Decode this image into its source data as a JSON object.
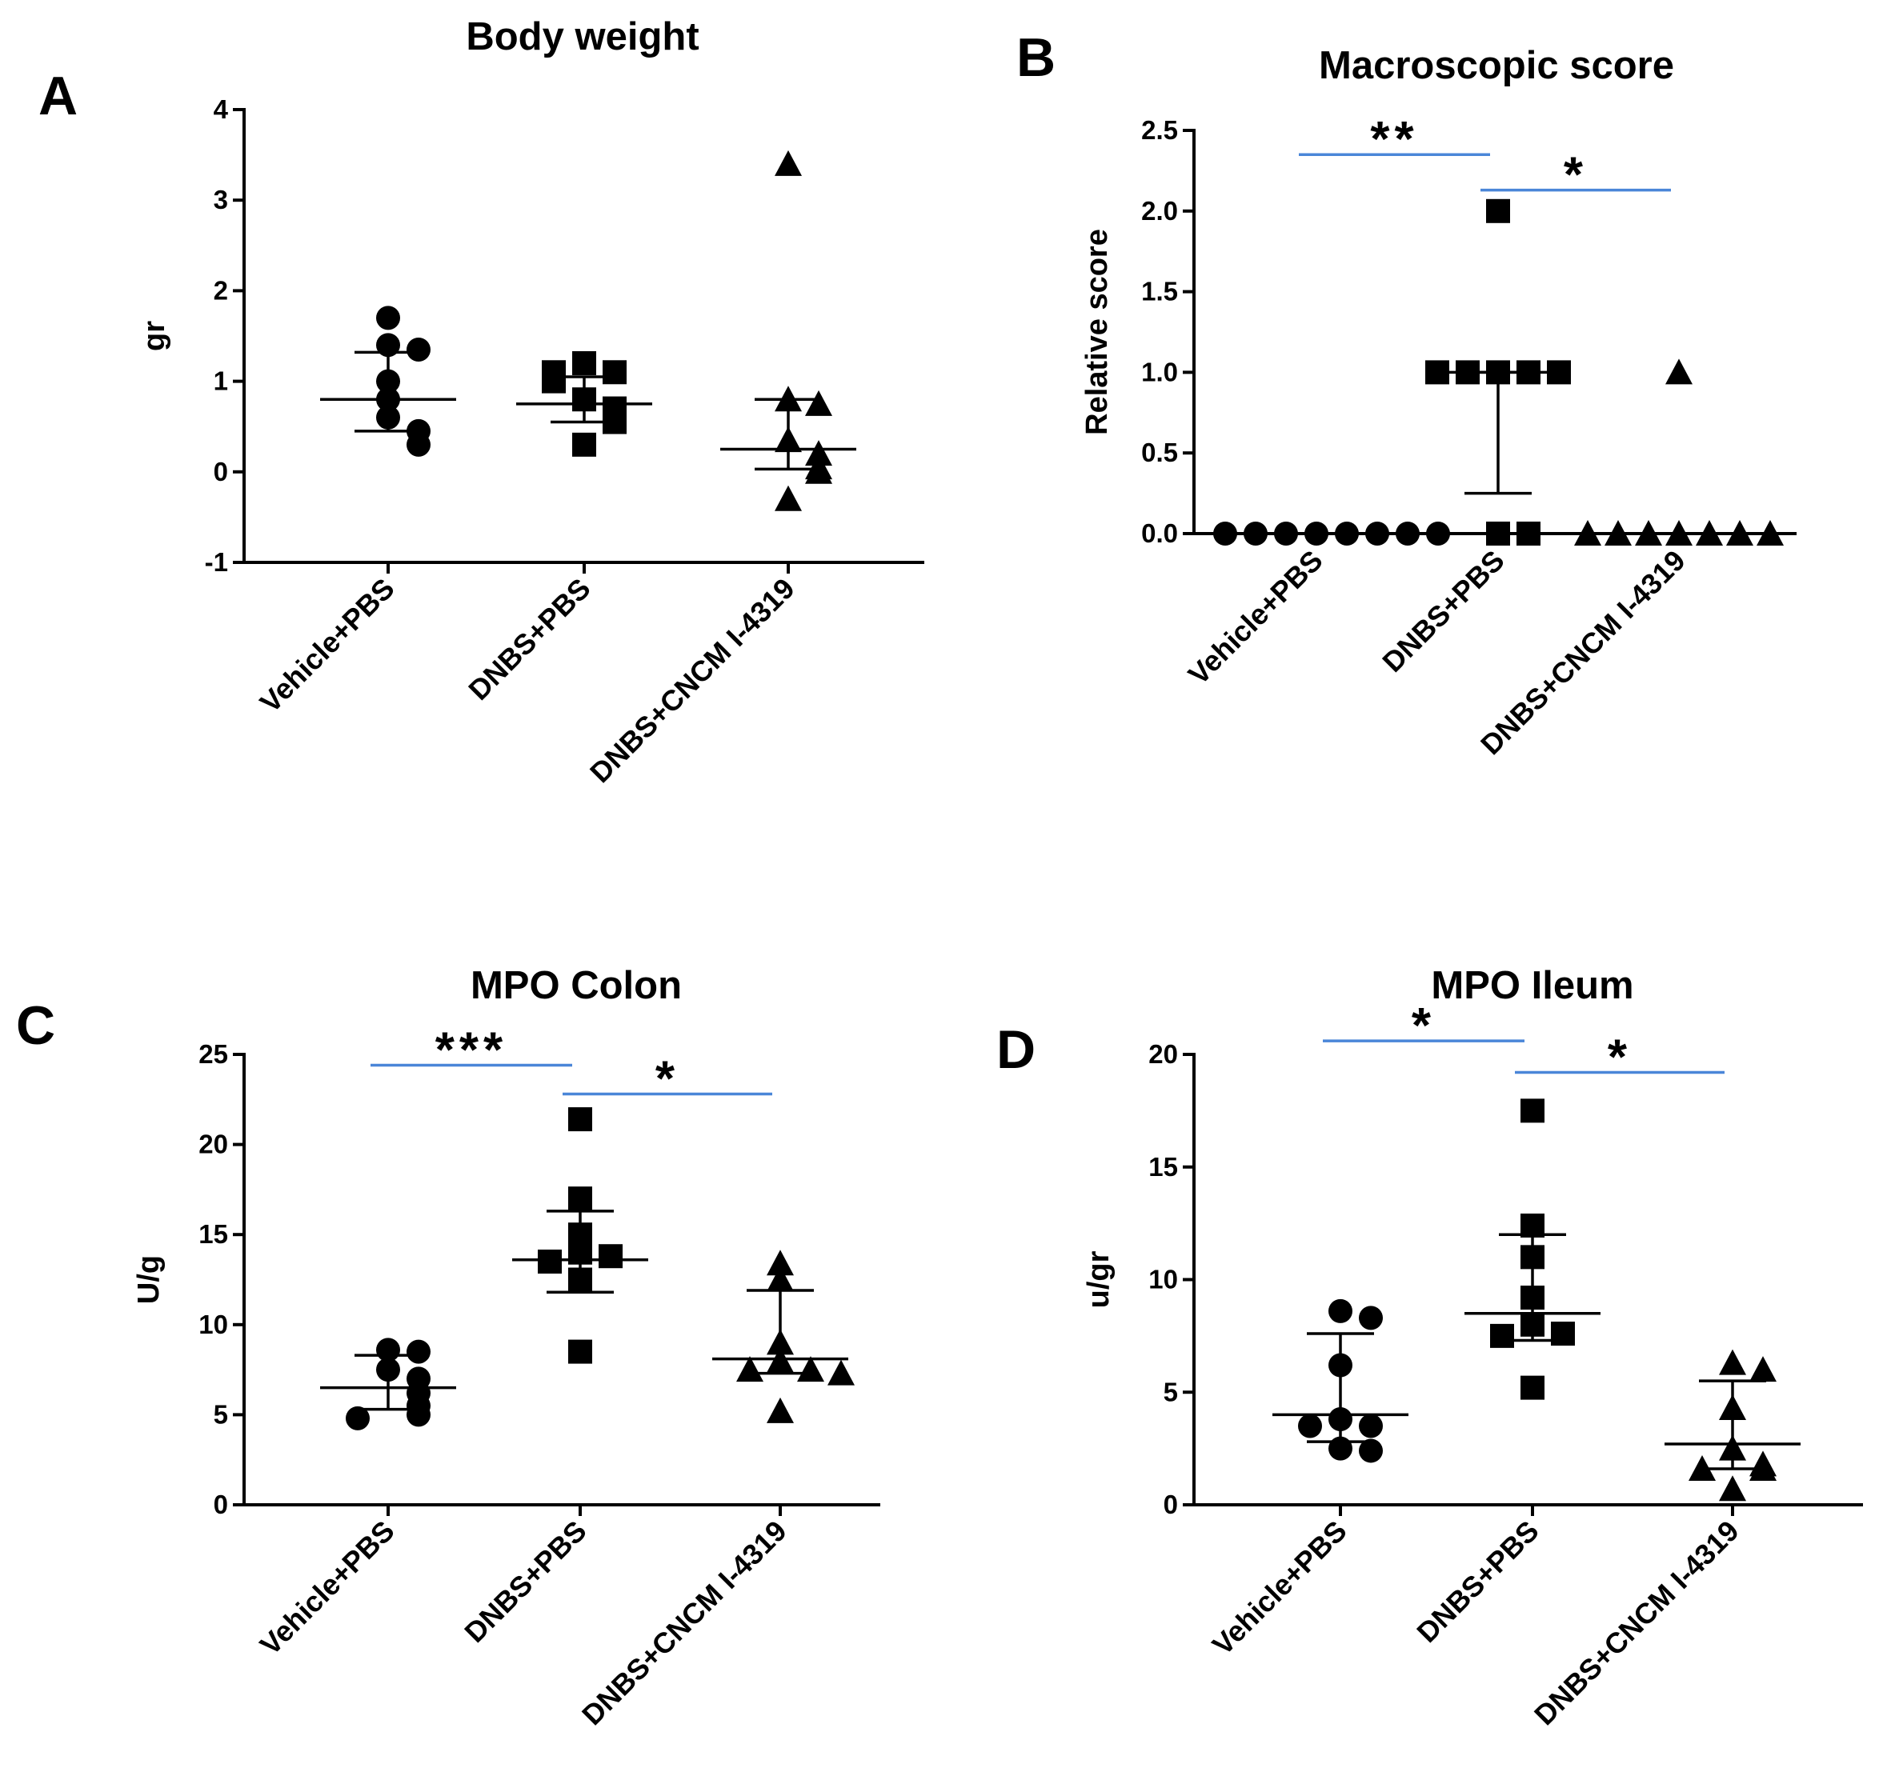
{
  "chart_data": [
    {
      "panel": "A",
      "type": "scatter",
      "title": "Body weight",
      "ylabel": "gr",
      "ylim": [
        -1,
        4
      ],
      "yticks": [
        "4",
        "3",
        "2",
        "1",
        "0",
        "-1"
      ],
      "categories": [
        "Vehicle+PBS",
        "DNBS+PBS",
        "DNBS+CNCM I-4319"
      ],
      "markers": [
        "circle",
        "square",
        "triangle"
      ],
      "groups": [
        {
          "values": [
            1.7,
            1.4,
            1.35,
            1.0,
            0.8,
            0.6,
            0.45,
            0.3
          ],
          "median": 0.8,
          "iqr": [
            0.45,
            1.32
          ]
        },
        {
          "values": [
            1.2,
            1.1,
            1.1,
            1.0,
            0.8,
            0.7,
            0.55,
            0.3
          ],
          "median": 0.75,
          "iqr": [
            0.55,
            1.05
          ]
        },
        {
          "values": [
            3.4,
            0.8,
            0.75,
            0.35,
            0.2,
            0.05,
            0.0,
            -0.3
          ],
          "median": 0.25,
          "iqr": [
            0.03,
            0.8
          ]
        }
      ],
      "significance": []
    },
    {
      "panel": "B",
      "type": "scatter",
      "title": "Macroscopic score",
      "ylabel": "Relative score",
      "ylim": [
        0,
        2.5
      ],
      "yticks": [
        "2.5",
        "2.0",
        "1.5",
        "1.0",
        "0.5",
        "0.0"
      ],
      "categories": [
        "Vehicle+PBS",
        "DNBS+PBS",
        "DNBS+CNCM I-4319"
      ],
      "markers": [
        "circle",
        "square",
        "triangle"
      ],
      "groups": [
        {
          "values": [
            0,
            0,
            0,
            0,
            0,
            0,
            0,
            0
          ],
          "median": 0,
          "iqr": [
            0,
            0
          ]
        },
        {
          "values": [
            2.0,
            1.0,
            1.0,
            1.0,
            1.0,
            1.0,
            0,
            0
          ],
          "median": 1.0,
          "iqr": [
            0.25,
            1.0
          ]
        },
        {
          "values": [
            1.0,
            0,
            0,
            0,
            0,
            0,
            0,
            0
          ],
          "median": 0,
          "iqr": [
            0,
            0
          ]
        }
      ],
      "significance": [
        {
          "from": 0,
          "to": 1,
          "level": 2.35,
          "label": "**"
        },
        {
          "from": 1,
          "to": 2,
          "level": 2.13,
          "label": "*"
        }
      ]
    },
    {
      "panel": "C",
      "type": "scatter",
      "title": "MPO Colon",
      "ylabel": "U/g",
      "ylim": [
        0,
        25
      ],
      "yticks": [
        "25",
        "20",
        "15",
        "10",
        "5",
        "0"
      ],
      "categories": [
        "Vehicle+PBS",
        "DNBS+PBS",
        "DNBS+CNCM I-4319"
      ],
      "markers": [
        "circle",
        "square",
        "triangle"
      ],
      "groups": [
        {
          "values": [
            8.6,
            8.5,
            7.5,
            7.0,
            6.2,
            5.5,
            5.0,
            4.8
          ],
          "median": 6.5,
          "iqr": [
            5.3,
            8.3
          ]
        },
        {
          "values": [
            21.4,
            17.0,
            15.0,
            14.0,
            13.8,
            13.5,
            12.5,
            8.5
          ],
          "median": 13.6,
          "iqr": [
            11.8,
            16.3
          ]
        },
        {
          "values": [
            13.4,
            12.5,
            9.0,
            8.0,
            7.5,
            7.5,
            7.3,
            5.2
          ],
          "median": 8.1,
          "iqr": [
            7.3,
            11.9
          ]
        }
      ],
      "significance": [
        {
          "from": 0,
          "to": 1,
          "level": 24.4,
          "label": "***"
        },
        {
          "from": 1,
          "to": 2,
          "level": 22.8,
          "label": "*"
        }
      ]
    },
    {
      "panel": "D",
      "type": "scatter",
      "title": "MPO Ileum",
      "ylabel": "u/gr",
      "ylim": [
        0,
        20
      ],
      "yticks": [
        "20",
        "15",
        "10",
        "5",
        "0"
      ],
      "categories": [
        "Vehicle+PBS",
        "DNBS+PBS",
        "DNBS+CNCM I-4319"
      ],
      "markers": [
        "circle",
        "square",
        "triangle"
      ],
      "groups": [
        {
          "values": [
            8.6,
            8.3,
            6.2,
            3.8,
            3.5,
            3.5,
            2.5,
            2.4
          ],
          "median": 4.0,
          "iqr": [
            2.8,
            7.6
          ]
        },
        {
          "values": [
            17.5,
            12.4,
            11.0,
            9.2,
            8.0,
            7.6,
            7.5,
            5.2
          ],
          "median": 8.5,
          "iqr": [
            7.3,
            12.0
          ]
        },
        {
          "values": [
            6.3,
            6.0,
            4.3,
            2.5,
            1.8,
            1.6,
            1.6,
            0.7
          ],
          "median": 2.7,
          "iqr": [
            1.6,
            5.5
          ]
        }
      ],
      "significance": [
        {
          "from": 0,
          "to": 1,
          "level": 20.6,
          "label": "*"
        },
        {
          "from": 1,
          "to": 2,
          "level": 19.2,
          "label": "*"
        }
      ]
    }
  ]
}
